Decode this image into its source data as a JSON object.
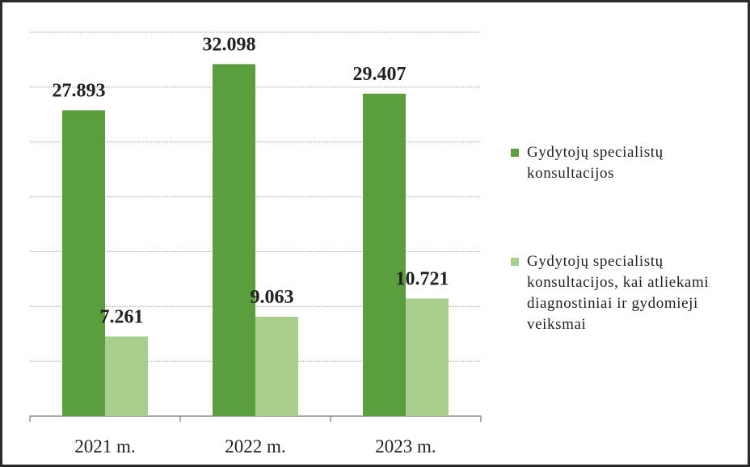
{
  "chart_data": {
    "type": "bar",
    "categories": [
      "2021 m.",
      "2022 m.",
      "2023 m."
    ],
    "series": [
      {
        "name": "Gydytojų specialistų konsultacijos",
        "color": "#5a9e3e",
        "values": [
          27.893,
          32.098,
          29.407
        ]
      },
      {
        "name": "Gydytojų specialistų konsultacijos, kai atliekami diagnostiniai ir gydomieji veiksmai",
        "color": "#a9cf8e",
        "values": [
          7.261,
          9.063,
          10.721
        ]
      }
    ],
    "ylim": [
      0,
      35
    ],
    "yticks": [
      0,
      5,
      10,
      15,
      20,
      25,
      30,
      35
    ],
    "grid": true,
    "legend": "right"
  }
}
